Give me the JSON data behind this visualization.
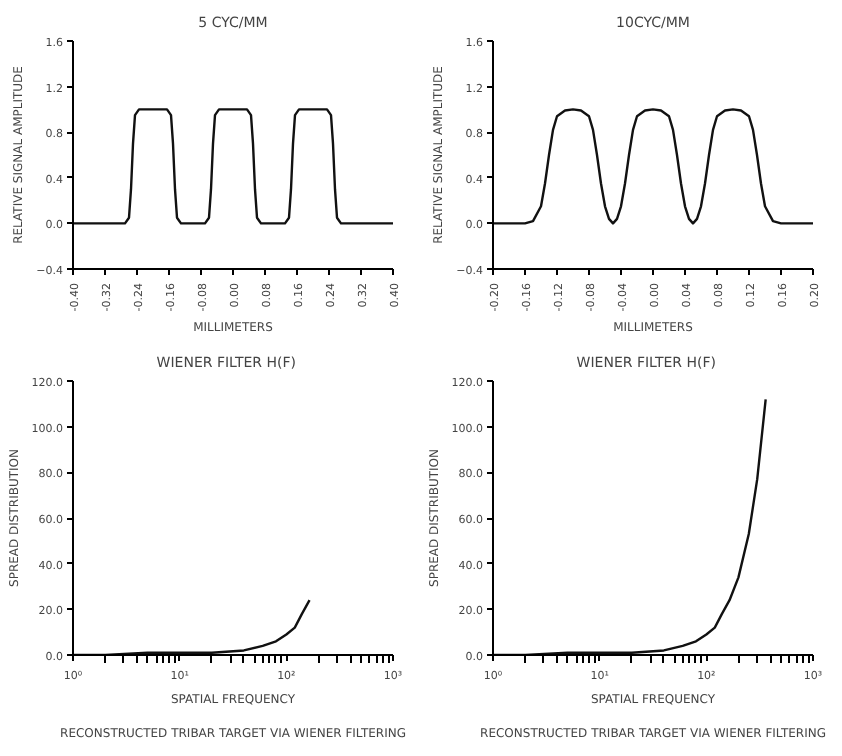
{
  "chart_data": [
    {
      "type": "line",
      "title": "5 CYC/MM",
      "xlabel": "MILLIMETERS",
      "ylabel": "RELATIVE SIGNAL AMPLITUDE",
      "color": "#111111",
      "x": [
        -0.4,
        -0.27,
        -0.26,
        -0.255,
        -0.25,
        -0.245,
        -0.235,
        -0.165,
        -0.155,
        -0.15,
        -0.145,
        -0.14,
        -0.13,
        -0.07,
        -0.06,
        -0.055,
        -0.05,
        -0.045,
        -0.035,
        0.035,
        0.045,
        0.05,
        0.055,
        0.06,
        0.07,
        0.13,
        0.14,
        0.145,
        0.15,
        0.155,
        0.165,
        0.235,
        0.245,
        0.25,
        0.255,
        0.26,
        0.27,
        0.4
      ],
      "values": [
        0,
        0,
        0.05,
        0.3,
        0.7,
        0.95,
        1.0,
        1.0,
        0.95,
        0.7,
        0.3,
        0.05,
        0,
        0,
        0.05,
        0.3,
        0.7,
        0.95,
        1.0,
        1.0,
        0.95,
        0.7,
        0.3,
        0.05,
        0,
        0,
        0.05,
        0.3,
        0.7,
        0.95,
        1.0,
        1.0,
        0.95,
        0.7,
        0.3,
        0.05,
        0,
        0
      ],
      "xlim": [
        -0.4,
        0.4
      ],
      "ylim": [
        -0.4,
        1.6
      ],
      "xticks": [
        {
          "value": -0.4,
          "label": "-0.40"
        },
        {
          "value": -0.32,
          "label": "-0.32"
        },
        {
          "value": -0.24,
          "label": "-0.24"
        },
        {
          "value": -0.16,
          "label": "-0.16"
        },
        {
          "value": -0.08,
          "label": "-0.08"
        },
        {
          "value": 0.0,
          "label": "0.00"
        },
        {
          "value": 0.08,
          "label": "0.08"
        },
        {
          "value": 0.16,
          "label": "0.16"
        },
        {
          "value": 0.24,
          "label": "0.24"
        },
        {
          "value": 0.32,
          "label": "0.32"
        },
        {
          "value": 0.4,
          "label": "0.40"
        }
      ],
      "yticks": [
        -0.4,
        {
          "value": 0,
          "label": "0.0"
        },
        0.4,
        0.8,
        1.2,
        1.6
      ]
    },
    {
      "type": "line",
      "title": "10CYC/MM",
      "xlabel": "MILLIMETERS",
      "ylabel": "RELATIVE SIGNAL AMPLITUDE",
      "color": "#111111",
      "x": [
        -0.2,
        -0.16,
        -0.15,
        -0.14,
        -0.135,
        -0.13,
        -0.125,
        -0.12,
        -0.11,
        -0.1,
        -0.09,
        -0.08,
        -0.075,
        -0.07,
        -0.065,
        -0.06,
        -0.055,
        -0.05,
        -0.045,
        -0.04,
        -0.035,
        -0.03,
        -0.025,
        -0.02,
        -0.01,
        0.0,
        0.01,
        0.02,
        0.025,
        0.03,
        0.035,
        0.04,
        0.045,
        0.05,
        0.055,
        0.06,
        0.065,
        0.07,
        0.075,
        0.08,
        0.09,
        0.1,
        0.11,
        0.12,
        0.125,
        0.13,
        0.135,
        0.14,
        0.15,
        0.16,
        0.2
      ],
      "values": [
        0,
        0,
        0.02,
        0.15,
        0.35,
        0.6,
        0.82,
        0.94,
        0.99,
        1.0,
        0.99,
        0.94,
        0.82,
        0.6,
        0.35,
        0.15,
        0.04,
        0.0,
        0.04,
        0.15,
        0.35,
        0.6,
        0.82,
        0.94,
        0.99,
        1.0,
        0.99,
        0.94,
        0.82,
        0.6,
        0.35,
        0.15,
        0.04,
        0.0,
        0.04,
        0.15,
        0.35,
        0.6,
        0.82,
        0.94,
        0.99,
        1.0,
        0.99,
        0.94,
        0.82,
        0.6,
        0.35,
        0.15,
        0.02,
        0,
        0
      ],
      "xlim": [
        -0.2,
        0.2
      ],
      "ylim": [
        -0.4,
        1.6
      ],
      "xticks": [
        {
          "value": -0.2,
          "label": "-0.20"
        },
        {
          "value": -0.16,
          "label": "-0.16"
        },
        {
          "value": -0.12,
          "label": "-0.12"
        },
        {
          "value": -0.08,
          "label": "-0.08"
        },
        {
          "value": -0.04,
          "label": "-0.04"
        },
        {
          "value": 0.0,
          "label": "0.00"
        },
        {
          "value": 0.04,
          "label": "0.04"
        },
        {
          "value": 0.08,
          "label": "0.08"
        },
        {
          "value": 0.12,
          "label": "0.12"
        },
        {
          "value": 0.16,
          "label": "0.16"
        },
        {
          "value": 0.2,
          "label": "0.20"
        }
      ],
      "yticks": [
        -0.4,
        {
          "value": 0,
          "label": "0.0"
        },
        0.4,
        0.8,
        1.2,
        1.6
      ]
    },
    {
      "type": "line",
      "title": "WIENER FILTER    H(F)",
      "xlabel": "SPATIAL FREQUENCY",
      "ylabel": "SPREAD DISTRIBUTION",
      "color": "#111111",
      "log": "x",
      "x": [
        1,
        2,
        5,
        10,
        20,
        40,
        60,
        80,
        100,
        120,
        140,
        165
      ],
      "values": [
        0,
        0,
        1,
        1,
        1,
        2,
        4,
        6,
        9,
        12,
        18,
        24
      ],
      "xlim": [
        1,
        1000
      ],
      "ylim": [
        0,
        120
      ],
      "xticks": [
        {
          "value": 1,
          "label": "10⁰"
        },
        {
          "value": 10,
          "label": "10¹"
        },
        {
          "value": 100,
          "label": "10²"
        },
        {
          "value": 1000,
          "label": "10³"
        }
      ],
      "yticks": [
        {
          "value": 0,
          "label": "0.0"
        },
        {
          "value": 20,
          "label": "20.0"
        },
        {
          "value": 40,
          "label": "40.0"
        },
        {
          "value": 60,
          "label": "60.0"
        },
        {
          "value": 80,
          "label": "80.0"
        },
        {
          "value": 100,
          "label": "100.0"
        },
        {
          "value": 120,
          "label": "120.0"
        }
      ],
      "annotations": [
        "RECONSTRUCTED TRIBAR TARGET VIA WIENER FILTERING"
      ]
    },
    {
      "type": "line",
      "title": "WIENER FILTER    H(F)",
      "xlabel": "SPATIAL FREQUENCY",
      "ylabel": "SPREAD DISTRIBUTION",
      "color": "#111111",
      "log": "x",
      "x": [
        1,
        2,
        5,
        10,
        20,
        40,
        60,
        80,
        100,
        120,
        140,
        165,
        200,
        250,
        300,
        360
      ],
      "values": [
        0,
        0,
        1,
        1,
        1,
        2,
        4,
        6,
        9,
        12,
        18,
        24,
        34,
        53,
        77,
        112
      ],
      "xlim": [
        1,
        1000
      ],
      "ylim": [
        0,
        120
      ],
      "xticks": [
        {
          "value": 1,
          "label": "10⁰"
        },
        {
          "value": 10,
          "label": "10¹"
        },
        {
          "value": 100,
          "label": "10²"
        },
        {
          "value": 1000,
          "label": "10³"
        }
      ],
      "yticks": [
        {
          "value": 0,
          "label": "0.0"
        },
        {
          "value": 20,
          "label": "20.0"
        },
        {
          "value": 40,
          "label": "40.0"
        },
        {
          "value": 60,
          "label": "60.0"
        },
        {
          "value": 80,
          "label": "80.0"
        },
        {
          "value": 100,
          "label": "100.0"
        },
        {
          "value": 120,
          "label": "120.0"
        }
      ],
      "annotations": [
        "RECONSTRUCTED TRIBAR TARGET VIA WIENER FILTERING"
      ]
    }
  ]
}
